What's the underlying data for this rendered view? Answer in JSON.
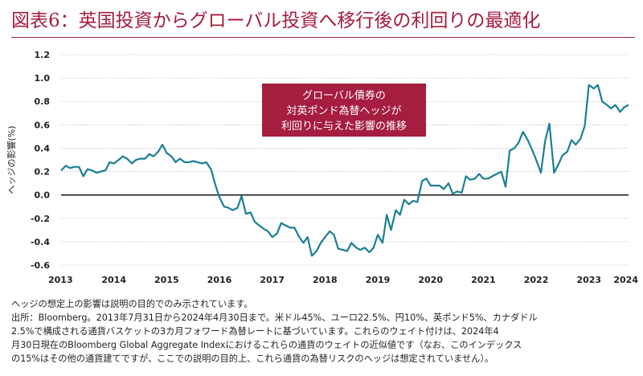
{
  "title": "図表6：英国投資からグローバル投資へ移行後の利回りの最適化",
  "chart_data": {
    "type": "line",
    "ylabel": "ヘッジの影響(%)",
    "ylim": [
      -0.6,
      1.2
    ],
    "yticks": [
      "1.2",
      "1.0",
      "0.8",
      "0.6",
      "0.4",
      "0.2",
      "0.0",
      "-0.2",
      "-0.4",
      "-0.6"
    ],
    "ytick_values": [
      1.2,
      1.0,
      0.8,
      0.6,
      0.4,
      0.2,
      0.0,
      -0.2,
      -0.4,
      -0.6
    ],
    "xlim": [
      2013.58,
      2024.33
    ],
    "xticks": [
      "2013",
      "2014",
      "2015",
      "2016",
      "2017",
      "2018",
      "2019",
      "2020",
      "2021",
      "2022",
      "2023",
      "2024"
    ],
    "xtick_values": [
      2013.58,
      2014.58,
      2015.58,
      2016.58,
      2017.58,
      2018.58,
      2019.58,
      2020.58,
      2021.58,
      2022.58,
      2023.58,
      2024.33
    ],
    "annotation": [
      "グローバル債券の",
      "対英ポンド為替ヘッジが",
      "利回りに与えた影響の推移"
    ],
    "colors": {
      "line": "#1a7f95",
      "accent": "#a51d3f",
      "zero_line": "#231f20",
      "grid": "#bdbdbd"
    },
    "series": [
      {
        "points": [
          [
            2013.58,
            0.21
          ],
          [
            2013.67,
            0.25
          ],
          [
            2013.75,
            0.23
          ],
          [
            2013.83,
            0.24
          ],
          [
            2013.92,
            0.24
          ],
          [
            2014.0,
            0.16
          ],
          [
            2014.08,
            0.22
          ],
          [
            2014.17,
            0.21
          ],
          [
            2014.25,
            0.19
          ],
          [
            2014.33,
            0.2
          ],
          [
            2014.42,
            0.21
          ],
          [
            2014.5,
            0.28
          ],
          [
            2014.58,
            0.27
          ],
          [
            2014.67,
            0.3
          ],
          [
            2014.75,
            0.33
          ],
          [
            2014.83,
            0.31
          ],
          [
            2014.92,
            0.27
          ],
          [
            2015.0,
            0.3
          ],
          [
            2015.08,
            0.31
          ],
          [
            2015.17,
            0.31
          ],
          [
            2015.25,
            0.35
          ],
          [
            2015.33,
            0.33
          ],
          [
            2015.42,
            0.37
          ],
          [
            2015.5,
            0.43
          ],
          [
            2015.58,
            0.36
          ],
          [
            2015.67,
            0.33
          ],
          [
            2015.75,
            0.28
          ],
          [
            2015.83,
            0.31
          ],
          [
            2015.92,
            0.28
          ],
          [
            2016.0,
            0.28
          ],
          [
            2016.08,
            0.29
          ],
          [
            2016.17,
            0.28
          ],
          [
            2016.25,
            0.27
          ],
          [
            2016.33,
            0.28
          ],
          [
            2016.42,
            0.22
          ],
          [
            2016.5,
            0.09
          ],
          [
            2016.58,
            -0.02
          ],
          [
            2016.67,
            -0.1
          ],
          [
            2016.75,
            -0.11
          ],
          [
            2016.83,
            -0.13
          ],
          [
            2016.92,
            -0.11
          ],
          [
            2017.0,
            -0.01
          ],
          [
            2017.08,
            -0.16
          ],
          [
            2017.17,
            -0.15
          ],
          [
            2017.25,
            -0.23
          ],
          [
            2017.33,
            -0.26
          ],
          [
            2017.42,
            -0.29
          ],
          [
            2017.5,
            -0.31
          ],
          [
            2017.58,
            -0.36
          ],
          [
            2017.67,
            -0.33
          ],
          [
            2017.75,
            -0.24
          ],
          [
            2017.83,
            -0.26
          ],
          [
            2017.92,
            -0.28
          ],
          [
            2018.0,
            -0.28
          ],
          [
            2018.08,
            -0.35
          ],
          [
            2018.17,
            -0.41
          ],
          [
            2018.25,
            -0.36
          ],
          [
            2018.33,
            -0.52
          ],
          [
            2018.42,
            -0.48
          ],
          [
            2018.5,
            -0.41
          ],
          [
            2018.58,
            -0.36
          ],
          [
            2018.67,
            -0.31
          ],
          [
            2018.75,
            -0.34
          ],
          [
            2018.83,
            -0.46
          ],
          [
            2018.92,
            -0.47
          ],
          [
            2019.0,
            -0.48
          ],
          [
            2019.08,
            -0.41
          ],
          [
            2019.17,
            -0.45
          ],
          [
            2019.25,
            -0.47
          ],
          [
            2019.33,
            -0.45
          ],
          [
            2019.42,
            -0.49
          ],
          [
            2019.5,
            -0.45
          ],
          [
            2019.58,
            -0.34
          ],
          [
            2019.67,
            -0.41
          ],
          [
            2019.75,
            -0.17
          ],
          [
            2019.83,
            -0.3
          ],
          [
            2019.92,
            -0.13
          ],
          [
            2020.0,
            -0.17
          ],
          [
            2020.08,
            -0.04
          ],
          [
            2020.17,
            -0.08
          ],
          [
            2020.25,
            -0.05
          ],
          [
            2020.33,
            -0.06
          ],
          [
            2020.42,
            0.12
          ],
          [
            2020.5,
            0.14
          ],
          [
            2020.58,
            0.08
          ],
          [
            2020.67,
            0.08
          ],
          [
            2020.75,
            0.08
          ],
          [
            2020.83,
            0.05
          ],
          [
            2020.92,
            0.1
          ],
          [
            2021.0,
            0.01
          ],
          [
            2021.08,
            0.03
          ],
          [
            2021.17,
            0.02
          ],
          [
            2021.25,
            0.16
          ],
          [
            2021.33,
            0.13
          ],
          [
            2021.42,
            0.14
          ],
          [
            2021.5,
            0.18
          ],
          [
            2021.58,
            0.14
          ],
          [
            2021.67,
            0.14
          ],
          [
            2021.75,
            0.16
          ],
          [
            2021.83,
            0.18
          ],
          [
            2021.92,
            0.2
          ],
          [
            2022.0,
            0.07
          ],
          [
            2022.08,
            0.38
          ],
          [
            2022.17,
            0.4
          ],
          [
            2022.25,
            0.45
          ],
          [
            2022.33,
            0.54
          ],
          [
            2022.42,
            0.47
          ],
          [
            2022.5,
            0.39
          ],
          [
            2022.58,
            0.3
          ],
          [
            2022.67,
            0.19
          ],
          [
            2022.75,
            0.46
          ],
          [
            2022.83,
            0.61
          ],
          [
            2022.92,
            0.19
          ],
          [
            2023.0,
            0.26
          ],
          [
            2023.08,
            0.34
          ],
          [
            2023.17,
            0.37
          ],
          [
            2023.25,
            0.47
          ],
          [
            2023.33,
            0.43
          ],
          [
            2023.42,
            0.48
          ],
          [
            2023.5,
            0.59
          ],
          [
            2023.58,
            0.94
          ],
          [
            2023.67,
            0.91
          ],
          [
            2023.75,
            0.94
          ],
          [
            2023.83,
            0.8
          ],
          [
            2023.92,
            0.77
          ],
          [
            2024.0,
            0.74
          ],
          [
            2024.08,
            0.77
          ],
          [
            2024.17,
            0.71
          ],
          [
            2024.25,
            0.75
          ],
          [
            2024.33,
            0.77
          ]
        ]
      }
    ]
  },
  "notes": [
    "ヘッジの想定上の影響は説明の目的でのみ示されています。",
    "出所：Bloomberg。2013年7月31日から2024年4月30日まで。米ドル45%、ユーロ22.5%、円10%、英ポンド5%、カナダドル",
    "2.5%で構成される通貨バスケットの3カ月フォワード為替レートに基づいています。これらのウェイト付けは、2024年4",
    "月30日現在のBloomberg Global Aggregate Indexにおけるこれらの通貨のウェイトの近似値です（なお、このインデックス",
    "の15%はその他の通貨建てですが、ここでの説明の目的上、これら通貨の為替リスクのヘッジは想定されていません）。"
  ]
}
